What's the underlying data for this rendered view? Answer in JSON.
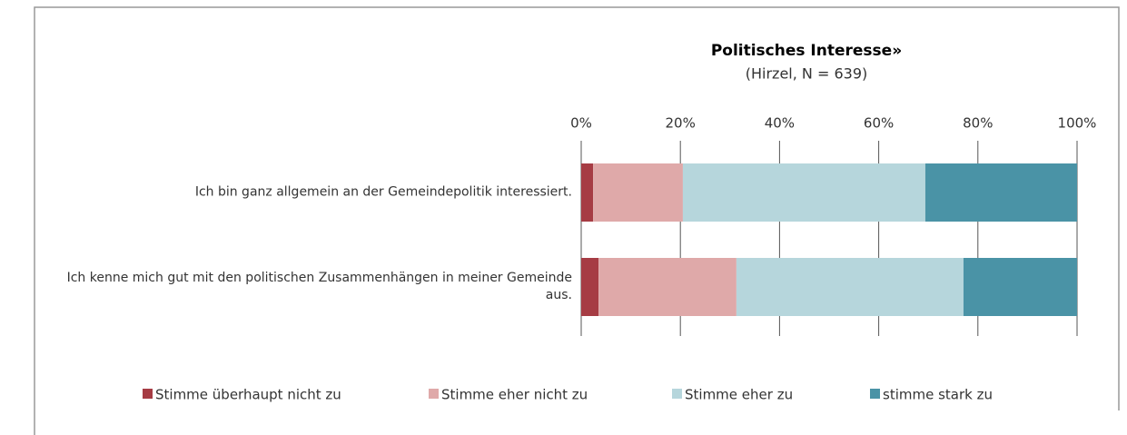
{
  "chart_data": {
    "type": "stacked-bar-horizontal",
    "title": "Politisches Interesse»",
    "subtitle": "(Hirzel, N = 639)",
    "categories": [
      "Ich bin ganz allgemein an der Gemeindepolitik interessiert.",
      "Ich kenne mich gut mit den politischen Zusammenhängen in meiner Gemeinde aus."
    ],
    "series": [
      {
        "name": "Stimme überhaupt nicht zu",
        "color": "#a63c44",
        "values": [
          2.4,
          3.5
        ]
      },
      {
        "name": "Stimme eher nicht zu",
        "color": "#dfa9a9",
        "values": [
          18.1,
          27.8
        ]
      },
      {
        "name": "Stimme eher zu",
        "color": "#b6d6dc",
        "values": [
          48.9,
          45.8
        ]
      },
      {
        "name": "stimme stark zu",
        "color": "#4a93a6",
        "values": [
          30.6,
          22.9
        ]
      }
    ],
    "xlim": [
      0,
      100
    ],
    "xticks": [
      {
        "value": 0,
        "label": "0%"
      },
      {
        "value": 20,
        "label": "20%"
      },
      {
        "value": 40,
        "label": "40%"
      },
      {
        "value": 60,
        "label": "60%"
      },
      {
        "value": 80,
        "label": "80%"
      },
      {
        "value": 100,
        "label": "100%"
      }
    ],
    "grid": true,
    "legend": "bottom"
  }
}
